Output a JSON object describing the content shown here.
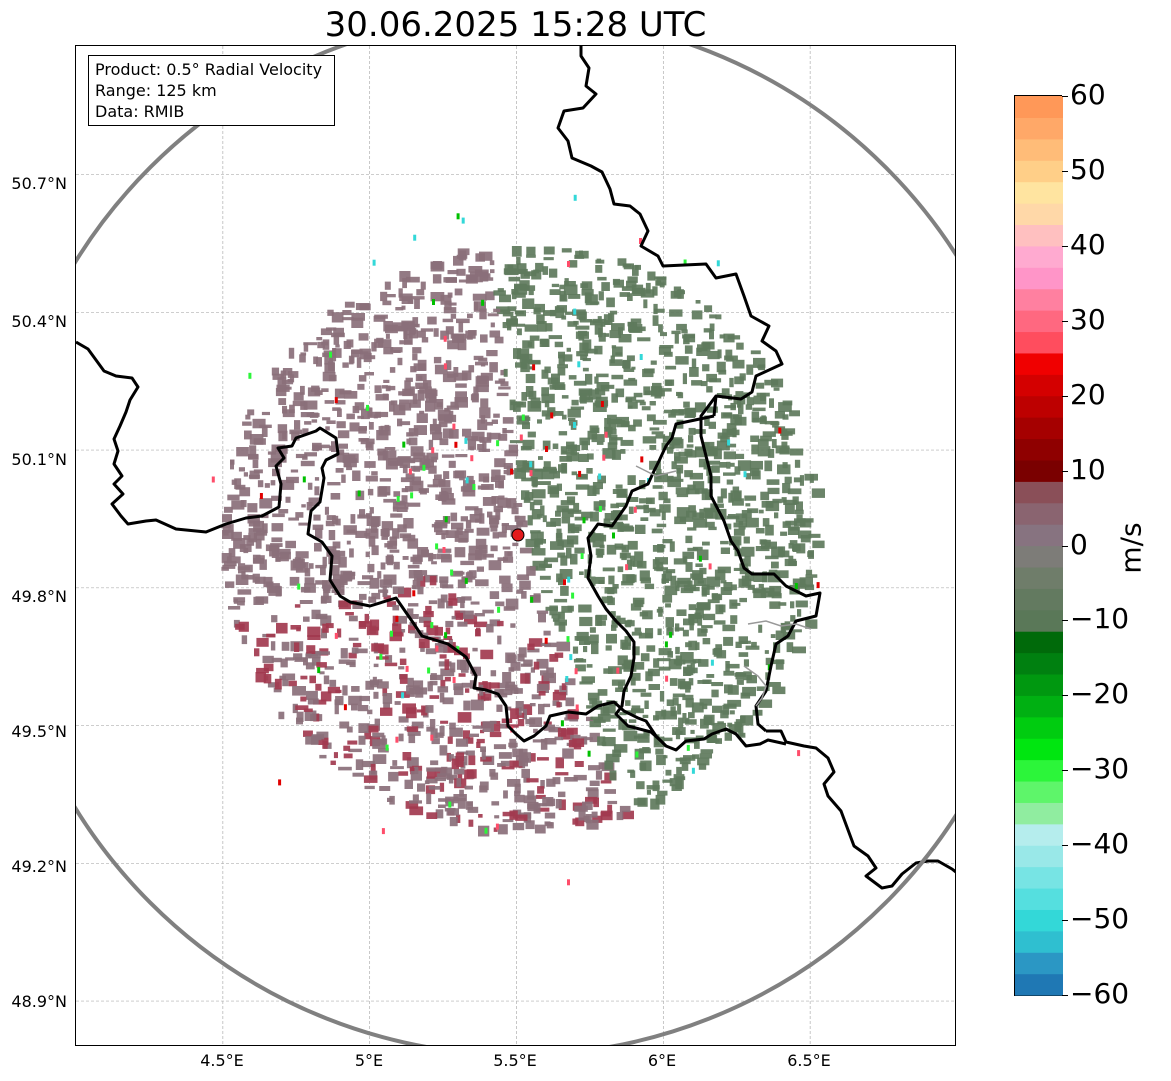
{
  "title": "30.06.2025 15:28 UTC",
  "info": {
    "product": "Product: 0.5° Radial Velocity",
    "range": "Range: 125 km",
    "data": "Data: RMIB"
  },
  "map": {
    "lon_range": [
      4.0,
      7.0
    ],
    "lat_range": [
      48.8,
      50.98
    ],
    "radar_site": {
      "lon": 5.505,
      "lat": 49.915
    },
    "range_ring_color": "#808080",
    "border_color": "#000000",
    "radar_marker_color": "#e31a1c",
    "echo_colors": {
      "inbound_weak": "#5e7a5c",
      "outbound_weak": "#8a6f7a",
      "outbound_strong": "#a23a4f"
    },
    "lat_ticks": [
      "50.7°N",
      "50.4°N",
      "50.1°N",
      "49.8°N",
      "49.5°N",
      "49.2°N",
      "48.9°N"
    ],
    "lat_values": [
      50.7,
      50.4,
      50.1,
      49.8,
      49.5,
      49.2,
      48.9
    ],
    "lon_ticks": [
      "4.5°E",
      "5°E",
      "5.5°E",
      "6°E",
      "6.5°E"
    ],
    "lon_values": [
      4.5,
      5.0,
      5.5,
      6.0,
      6.5
    ]
  },
  "colorbar": {
    "label": "m/s",
    "min": -60,
    "max": 60,
    "tick_labels": [
      "60",
      "50",
      "40",
      "30",
      "20",
      "10",
      "0",
      "−10",
      "−20",
      "−30",
      "−40",
      "−50",
      "−60"
    ],
    "tick_values": [
      60,
      50,
      40,
      30,
      20,
      10,
      0,
      -10,
      -20,
      -30,
      -40,
      -50,
      -60
    ],
    "colors_bottom_to_top": [
      "#1f78b4",
      "#2b97c4",
      "#2fbfd0",
      "#33d8d8",
      "#55dfdf",
      "#77e4e4",
      "#99e8e8",
      "#b5eded",
      "#90eda0",
      "#5ef56a",
      "#2cf53a",
      "#00e610",
      "#00cc10",
      "#00b012",
      "#009810",
      "#008010",
      "#006a0a",
      "#5a7858",
      "#637a60",
      "#6f7d6a",
      "#7d7c78",
      "#877380",
      "#8a6470",
      "#8a4f58",
      "#7a0000",
      "#8f0000",
      "#a50000",
      "#bd0000",
      "#d40000",
      "#f00000",
      "#ff4d5e",
      "#ff6880",
      "#ff80a0",
      "#ff95c8",
      "#ffaad0",
      "#ffc0c0",
      "#ffd8a8",
      "#ffe4a0",
      "#ffcf88",
      "#ffbc78",
      "#ffa868",
      "#ff9858"
    ]
  }
}
